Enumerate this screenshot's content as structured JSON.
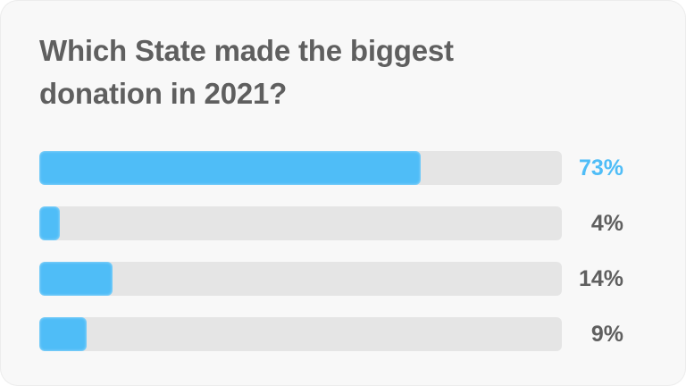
{
  "poll": {
    "question": "Which State made the biggest donation in 2021?",
    "accent_color": "#4fbdf7",
    "track_color": "#e5e5e5",
    "text_color": "#5f5f5f",
    "options": [
      {
        "percent_label": "73%",
        "value": 73,
        "leading": true
      },
      {
        "percent_label": "4%",
        "value": 4,
        "leading": false
      },
      {
        "percent_label": "14%",
        "value": 14,
        "leading": false
      },
      {
        "percent_label": "9%",
        "value": 9,
        "leading": false
      }
    ]
  }
}
